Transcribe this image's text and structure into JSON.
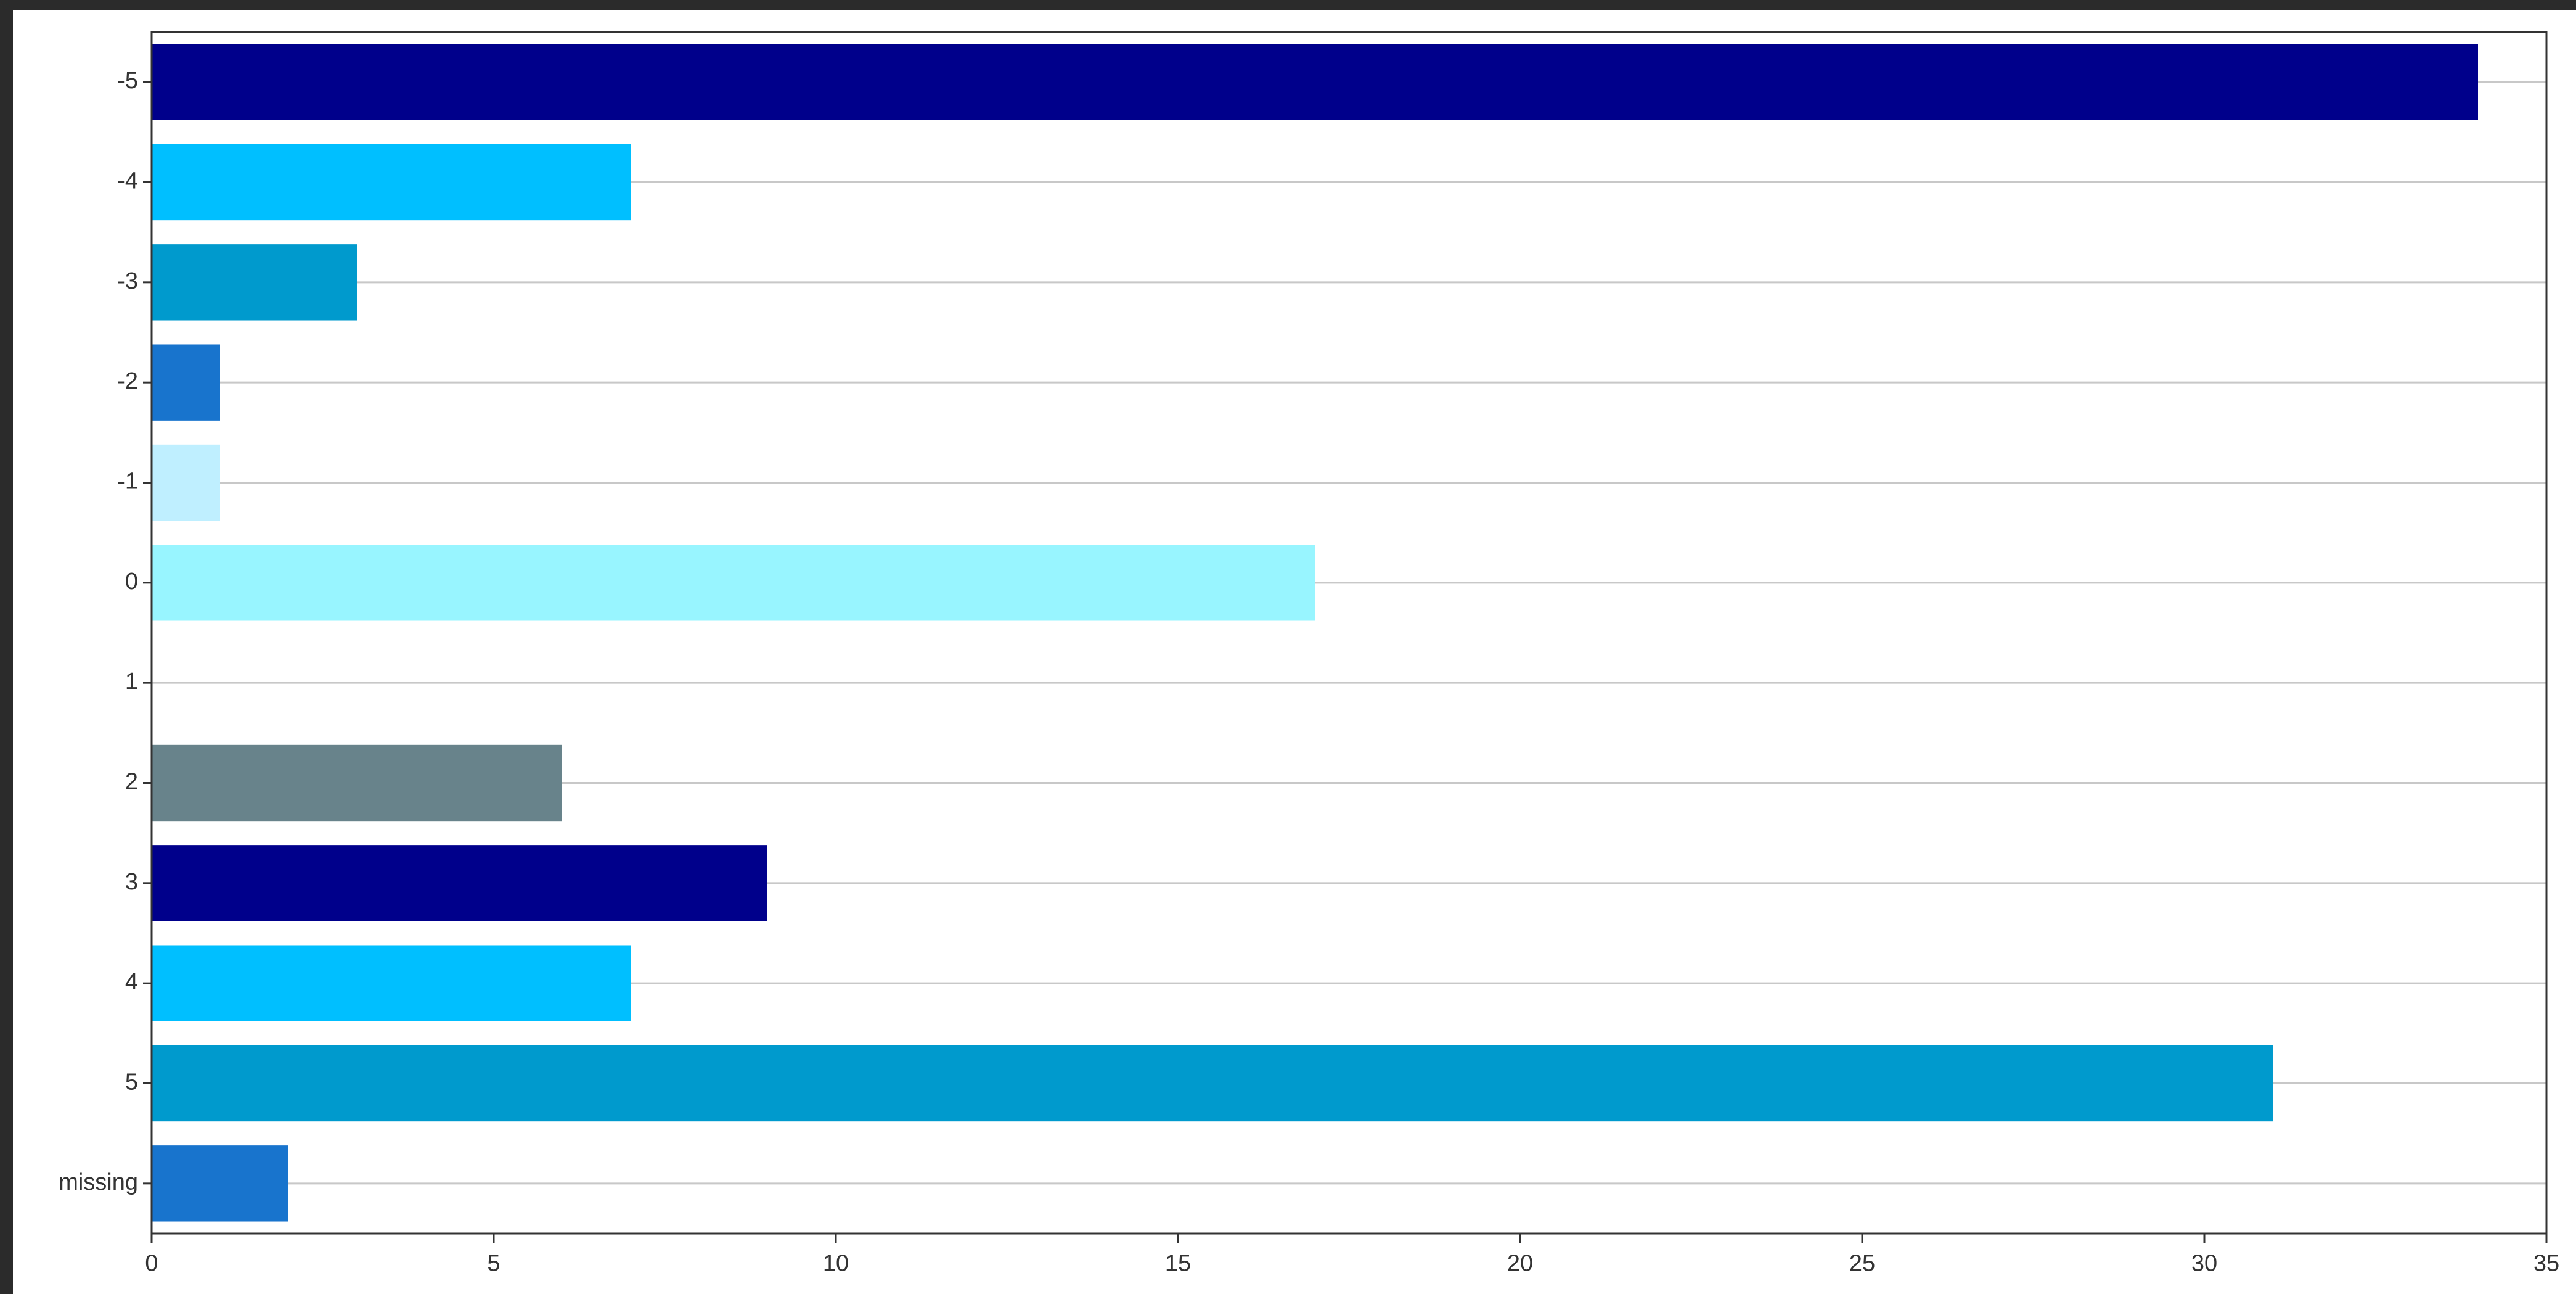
{
  "chart_data": {
    "type": "bar",
    "orientation": "horizontal",
    "title": "",
    "xlabel": "",
    "ylabel": "",
    "categories": [
      "-5",
      "-4",
      "-3",
      "-2",
      "-1",
      "0",
      "1",
      "2",
      "3",
      "4",
      "5",
      "missing"
    ],
    "values": [
      34,
      7,
      3,
      1,
      1,
      17,
      0,
      6,
      9,
      7,
      31,
      2
    ],
    "colors": [
      "#00008b",
      "#00bfff",
      "#009acd",
      "#1874cd",
      "#bfefff",
      "#98f5ff",
      "#ffffff",
      "#68838b",
      "#00008b",
      "#00bfff",
      "#009acd",
      "#1874cd"
    ],
    "xlim": [
      0,
      35
    ],
    "xticks": [
      0,
      5,
      10,
      15,
      20,
      25,
      30,
      35
    ],
    "grid": "horizontal",
    "legend": "none"
  }
}
